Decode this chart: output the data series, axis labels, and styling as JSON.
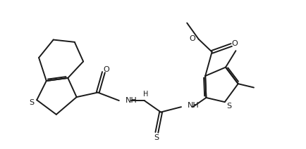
{
  "bg": "#ffffff",
  "lc": "#1a1a1a",
  "lw": 1.4,
  "fs": 7.0,
  "fig_w": 4.34,
  "fig_h": 2.12,
  "dpi": 100,
  "xlim": [
    0,
    10.5
  ],
  "ylim": [
    0,
    5.0
  ]
}
